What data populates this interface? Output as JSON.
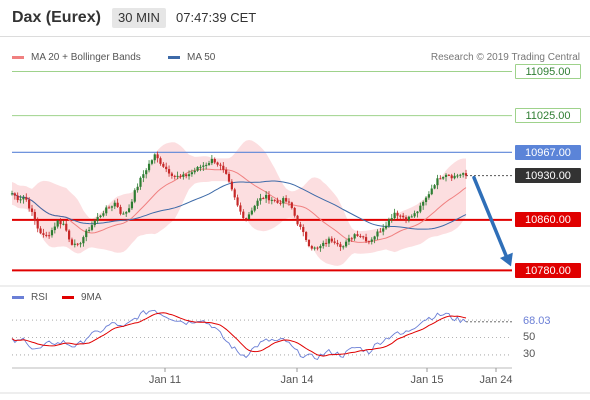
{
  "header": {
    "instrument": "Dax (Eurex)",
    "timeframe": "30 MIN",
    "time": "07:47:39 CET"
  },
  "legend": {
    "ma20_label": "MA 20 + Bollinger Bands",
    "ma50_label": "MA 50",
    "rsi_label": "RSI",
    "ma9_label": "9MA",
    "credit": "Research © 2019 Trading Central"
  },
  "colors": {
    "up_candle": "#2e7d32",
    "down_candle": "#c62828",
    "bollinger_fill": "#fbd3d6",
    "ma20": "#f08080",
    "ma50": "#3d6aa8",
    "support": "#e00000",
    "resistance_green": "#9ed28b",
    "pivot_blue": "#5b84d8",
    "arrow": "#2f6fb8",
    "rsi": "#6b7fd6",
    "ma9": "#e00000"
  },
  "chart_data": [
    {
      "type": "candlestick",
      "x_labels": [
        "Jan 11",
        "Jan 14",
        "Jan 15",
        "Jan 24"
      ],
      "ylim": [
        10760,
        11110
      ],
      "levels": [
        {
          "value": 11095,
          "label": "11095.00",
          "kind": "resistance"
        },
        {
          "value": 11025,
          "label": "11025.00",
          "kind": "resistance"
        },
        {
          "value": 10967,
          "label": "10967.00",
          "kind": "pivot"
        },
        {
          "value": 10930,
          "label": "10930.00",
          "kind": "last"
        },
        {
          "value": 10860,
          "label": "10860.00",
          "kind": "support"
        },
        {
          "value": 10780,
          "label": "10780.00",
          "kind": "support"
        }
      ],
      "price_path": [
        10902,
        10893,
        10897,
        10872,
        10846,
        10832,
        10841,
        10858,
        10853,
        10826,
        10816,
        10833,
        10848,
        10861,
        10872,
        10880,
        10888,
        10866,
        10878,
        10906,
        10928,
        10946,
        10962,
        10950,
        10938,
        10930,
        10927,
        10931,
        10937,
        10944,
        10949,
        10956,
        10946,
        10930,
        10903,
        10876,
        10861,
        10877,
        10891,
        10897,
        10893,
        10887,
        10892,
        10882,
        10856,
        10836,
        10818,
        10813,
        10821,
        10829,
        10826,
        10817,
        10829,
        10839,
        10834,
        10826,
        10836,
        10846,
        10858,
        10872,
        10866,
        10862,
        10868,
        10880,
        10897,
        10916,
        10928,
        10934,
        10928,
        10932,
        10935
      ],
      "forecast": {
        "from": 10930,
        "to": 10780
      },
      "series": [
        {
          "name": "MA 20"
        },
        {
          "name": "MA 50"
        }
      ]
    },
    {
      "type": "line",
      "ylim": [
        15,
        85
      ],
      "y_ticks": [
        50,
        30
      ],
      "last_rsi": 68.03,
      "last_rsi_label": "68.03",
      "rsi_path": [
        46,
        45,
        49,
        38,
        36,
        40,
        45,
        43,
        45,
        41,
        40,
        46,
        53,
        55,
        59,
        64,
        67,
        60,
        66,
        72,
        77,
        80,
        82,
        77,
        74,
        71,
        69,
        67,
        69,
        71,
        67,
        63,
        55,
        46,
        39,
        32,
        29,
        36,
        42,
        46,
        47,
        45,
        48,
        40,
        33,
        29,
        28,
        27,
        31,
        34,
        32,
        29,
        35,
        39,
        37,
        33,
        41,
        46,
        50,
        55,
        53,
        57,
        62,
        68,
        72,
        74,
        76,
        77,
        72,
        70,
        68
      ],
      "series": [
        {
          "name": "RSI"
        },
        {
          "name": "9MA"
        }
      ]
    }
  ]
}
